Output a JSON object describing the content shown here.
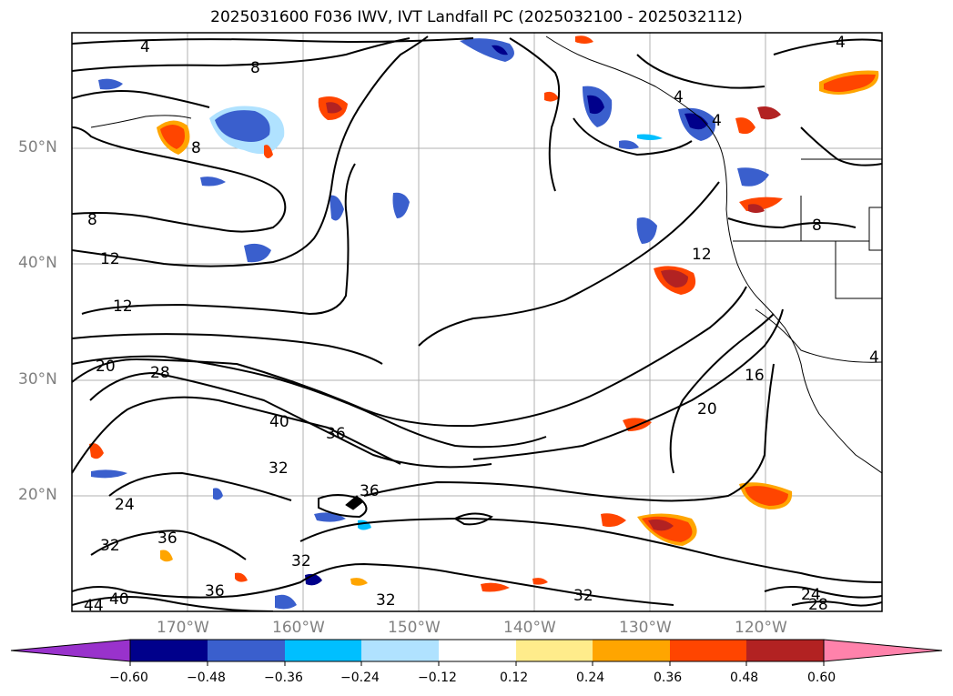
{
  "title": "2025031600 F036 IWV, IVT Landfall PC (2025032100 - 2025032112)",
  "lat_labels": [
    "50°N",
    "40°N",
    "30°N",
    "20°N"
  ],
  "lon_labels": [
    "170°W",
    "160°W",
    "150°W",
    "140°W",
    "130°W",
    "120°W"
  ],
  "contour_labels": [
    "4",
    "8",
    "8",
    "8",
    "12",
    "12",
    "12",
    "16",
    "20",
    "20",
    "24",
    "24",
    "28",
    "28",
    "32",
    "32",
    "32",
    "32",
    "32",
    "36",
    "36",
    "36",
    "36",
    "40",
    "40",
    "44",
    "4",
    "4",
    "4",
    "8",
    "4"
  ],
  "colorbar": {
    "ticks": [
      "−0.60",
      "−0.48",
      "−0.36",
      "−0.24",
      "−0.12",
      "0.12",
      "0.24",
      "0.36",
      "0.48",
      "0.60"
    ],
    "colors": [
      "#9932cc",
      "#00008b",
      "#3a5fcd",
      "#00bfff",
      "#b0e2ff",
      "#ffffff",
      "#ffec8b",
      "#ffa500",
      "#ff4500",
      "#b22222",
      "#ff82ab"
    ]
  },
  "colors": {
    "strong_negative": "#00008b",
    "negative": "#3a5fcd",
    "weak_negative": "#00bfff",
    "faint_negative": "#b0e2ff",
    "faint_positive": "#ffec8b",
    "weak_positive": "#ffa500",
    "positive": "#ff4500",
    "strong_positive": "#b22222"
  }
}
